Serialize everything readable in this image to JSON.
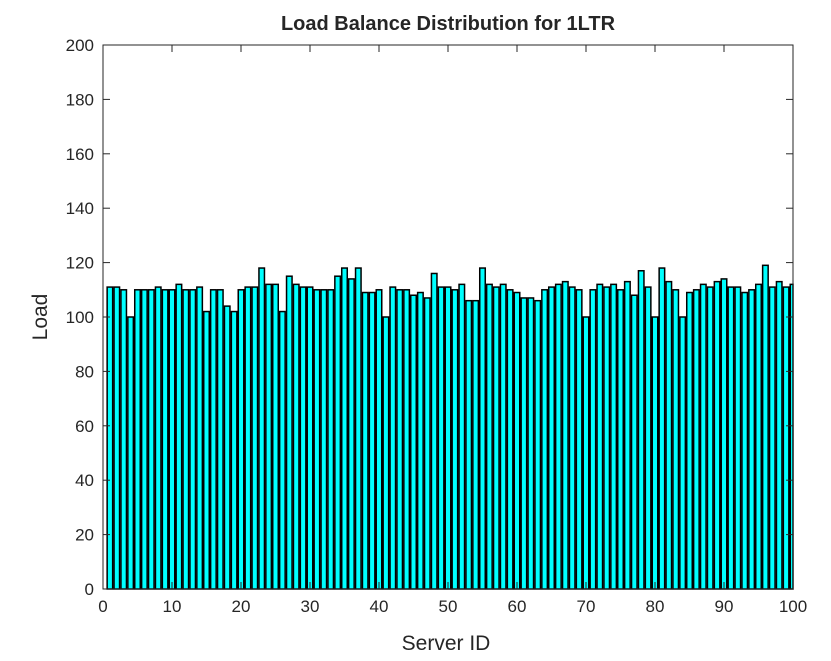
{
  "chart_data": {
    "type": "bar",
    "title": "Load Balance Distribution for 1LTR",
    "xlabel": "Server ID",
    "ylabel": "Load",
    "xlim": [
      0,
      100
    ],
    "ylim": [
      0,
      200
    ],
    "xticks": [
      0,
      10,
      20,
      30,
      40,
      50,
      60,
      70,
      80,
      90,
      100
    ],
    "yticks": [
      0,
      20,
      40,
      60,
      80,
      100,
      120,
      140,
      160,
      180,
      200
    ],
    "grid": false,
    "bar_color": "#00ffff",
    "edge_color": "#000000",
    "x": [
      1,
      2,
      3,
      4,
      5,
      6,
      7,
      8,
      9,
      10,
      11,
      12,
      13,
      14,
      15,
      16,
      17,
      18,
      19,
      20,
      21,
      22,
      23,
      24,
      25,
      26,
      27,
      28,
      29,
      30,
      31,
      32,
      33,
      34,
      35,
      36,
      37,
      38,
      39,
      40,
      41,
      42,
      43,
      44,
      45,
      46,
      47,
      48,
      49,
      50,
      51,
      52,
      53,
      54,
      55,
      56,
      57,
      58,
      59,
      60,
      61,
      62,
      63,
      64,
      65,
      66,
      67,
      68,
      69,
      70,
      71,
      72,
      73,
      74,
      75,
      76,
      77,
      78,
      79,
      80,
      81,
      82,
      83,
      84,
      85,
      86,
      87,
      88,
      89,
      90,
      91,
      92,
      93,
      94,
      95,
      96,
      97,
      98,
      99,
      100
    ],
    "values": [
      111,
      111,
      110,
      100,
      110,
      110,
      110,
      111,
      110,
      110,
      112,
      110,
      110,
      111,
      102,
      110,
      110,
      104,
      102,
      110,
      111,
      111,
      118,
      112,
      112,
      102,
      115,
      112,
      111,
      111,
      110,
      110,
      110,
      115,
      118,
      114,
      118,
      109,
      109,
      110,
      100,
      111,
      110,
      110,
      108,
      109,
      107,
      116,
      111,
      111,
      110,
      112,
      106,
      106,
      118,
      112,
      111,
      112,
      110,
      109,
      107,
      107,
      106,
      110,
      111,
      112,
      113,
      111,
      110,
      100,
      110,
      112,
      111,
      112,
      110,
      113,
      108,
      117,
      111,
      100,
      118,
      113,
      110,
      100,
      109,
      110,
      112,
      111,
      113,
      114,
      111,
      111,
      109,
      110,
      112,
      119,
      111,
      113,
      111,
      112
    ]
  }
}
